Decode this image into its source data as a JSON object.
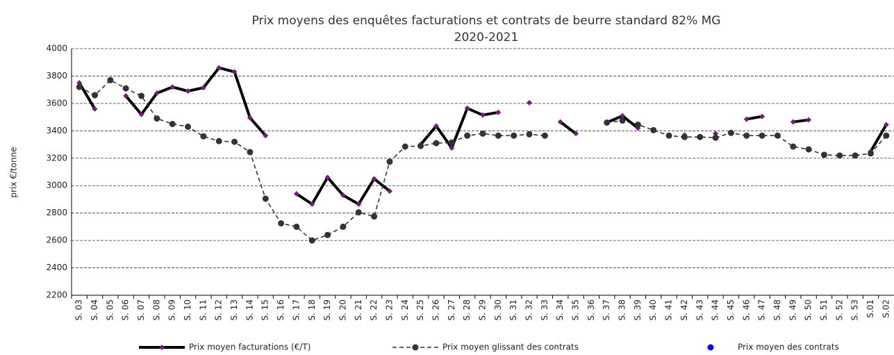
{
  "chart_data": {
    "type": "line",
    "title": "Prix moyens des enquêtes facturations et contrats de beurre standard 82% MG",
    "subtitle": "2020-2021",
    "y_label": "prix €/tonne",
    "categories": [
      "S. 03",
      "S. 04",
      "S. 05",
      "S. 06",
      "S. 07",
      "S. 08",
      "S. 09",
      "S. 10",
      "S. 11",
      "S. 12",
      "S. 13",
      "S. 14",
      "S. 15",
      "S. 16",
      "S. 17",
      "S. 18",
      "S. 19",
      "S. 20",
      "S. 21",
      "S. 22",
      "S. 23",
      "S. 24",
      "S. 25",
      "S. 26",
      "S. 27",
      "S. 28",
      "S. 29",
      "S. 30",
      "S. 31",
      "S. 32",
      "S. 33",
      "S. 34",
      "S. 35",
      "S. 36",
      "S. 37",
      "S. 38",
      "S. 39",
      "S. 40",
      "S. 41",
      "S. 42",
      "S. 43",
      "S. 44",
      "S. 45",
      "S. 46",
      "S. 47",
      "S. 48",
      "S. 49",
      "S. 50",
      "S. 51",
      "S. 52",
      "S. 53",
      "S.01",
      "S.02"
    ],
    "series": [
      {
        "name": "Prix moyen facturations (€/T)",
        "color": "#000000",
        "marker_color": "#7b1a7b",
        "marker": "diamond",
        "dashed": false,
        "values": [
          3750,
          3560,
          null,
          3655,
          3520,
          3675,
          3720,
          3690,
          3715,
          3860,
          3830,
          3495,
          3365,
          null,
          2940,
          2865,
          3060,
          2930,
          2865,
          3050,
          2960,
          null,
          3300,
          3435,
          3275,
          3565,
          3515,
          3535,
          null,
          3605,
          null,
          3465,
          3380,
          null,
          3460,
          3510,
          3420,
          null,
          null,
          3370,
          null,
          3380,
          null,
          3485,
          3505,
          null,
          3465,
          3480,
          null,
          null,
          null,
          3250,
          3445
        ]
      },
      {
        "name": "Prix moyen glissant des contrats",
        "color": "#333333",
        "marker_color": "#333333",
        "marker": "circle",
        "dashed": true,
        "values": [
          3720,
          3660,
          3770,
          3710,
          3655,
          3490,
          3450,
          3430,
          3360,
          3325,
          3320,
          3245,
          2905,
          2725,
          2700,
          2600,
          2640,
          2700,
          2805,
          2775,
          3175,
          3285,
          3290,
          3310,
          3315,
          3365,
          3380,
          3365,
          3365,
          3375,
          3365,
          null,
          null,
          null,
          3460,
          3475,
          3445,
          3405,
          3365,
          3355,
          3355,
          3350,
          3385,
          3365,
          3365,
          3365,
          3285,
          3265,
          3225,
          3220,
          3220,
          3235,
          3365
        ]
      },
      {
        "name": "Prix moyen des contrats",
        "color": "#0000ff",
        "marker_color": "#0000ff",
        "marker": "circle",
        "dashed": false,
        "values": [
          null,
          null,
          null,
          null,
          null,
          null,
          null,
          null,
          null,
          null,
          null,
          null,
          null,
          null,
          null,
          null,
          null,
          null,
          null,
          null,
          null,
          null,
          null,
          null,
          null,
          null,
          null,
          null,
          null,
          null,
          null,
          null,
          null,
          null,
          null,
          null,
          null,
          null,
          null,
          null,
          null,
          null,
          null,
          null,
          null,
          null,
          null,
          null,
          null,
          null,
          null,
          null,
          null
        ]
      }
    ],
    "ylim": [
      2200,
      4000
    ],
    "yticks": [
      2200,
      2400,
      2600,
      2800,
      3000,
      3200,
      3400,
      3600,
      3800,
      4000
    ],
    "grid": true,
    "legend": "bottom"
  }
}
